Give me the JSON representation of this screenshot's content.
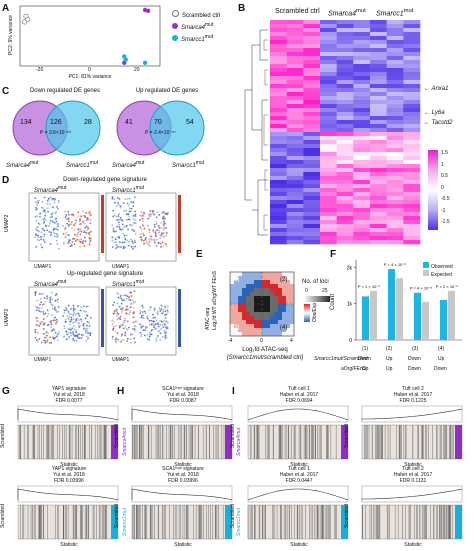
{
  "panels": {
    "A": {
      "label": "A",
      "xlabel": "PC1: 81% variance",
      "ylabel": "PC2: 9% variance",
      "xticks": [
        "-20",
        "0",
        "20"
      ],
      "yticks": [
        "-2",
        "0",
        "2",
        "4"
      ],
      "legend": [
        {
          "text": "Scrambled ctrl",
          "color": "#ffffff"
        },
        {
          "text": "Smarca4",
          "sup": "mut",
          "color": "#9b2fc6"
        },
        {
          "text": "Smarcc1",
          "sup": "mut",
          "color": "#14b6d8"
        }
      ]
    },
    "B": {
      "label": "B",
      "groups": [
        {
          "text": "Scrambled ctrl"
        },
        {
          "text": "Smarca4",
          "sup": "mut"
        },
        {
          "text": "Smarcc1",
          "sup": "mut"
        }
      ],
      "genes": [
        "Anxa1",
        "Ly6a",
        "Tacstd2"
      ],
      "scale_ticks": [
        "1.5",
        "1",
        "0.5",
        "0",
        "-0.5",
        "-1",
        "-1.5"
      ]
    },
    "C": {
      "label": "C",
      "down_title": "Down regulated DE genes",
      "up_title": "Up regulated DE genes",
      "down_counts": [
        "134",
        "126",
        "28"
      ],
      "up_counts": [
        "41",
        "70",
        "54"
      ],
      "down_p": "P = 3.6×10⁻⁶³",
      "up_p": "P = 2.4×10⁻⁵⁷",
      "left_set": {
        "text": "Smarca4",
        "sup": "mut"
      },
      "right_set": {
        "text": "Smarcc1",
        "sup": "mut"
      }
    },
    "D": {
      "label": "D",
      "down_title": "Down-regulated gene signature",
      "up_title": "Up-regulated gene signature",
      "umap1": "UMAP1",
      "umap2": "UMAP2",
      "left_set": {
        "text": "Smarca4",
        "sup": "mut"
      },
      "right_set": {
        "text": "Smarcc1",
        "sup": "mut"
      }
    },
    "E": {
      "label": "E",
      "ylabel_line1": "ATAC-seq",
      "ylabel_line2": "Log₂fd WT aOrg/WT FEnS",
      "xlabel_line1": "Log₂fd ATAC-seq",
      "xlabel_line2": "(Smarcc1mut/scrambled ctrl)",
      "quadrants": [
        "(1)",
        "(2)",
        "(3)",
        "(4)"
      ],
      "xticks": [
        "-4",
        "0",
        "4"
      ],
      "colorbar_title": "No. of loci",
      "colorbar_ticks": [
        "0",
        "25"
      ],
      "ratio_label": "Obs/Exp"
    },
    "F": {
      "label": "F",
      "ylabel": "Count",
      "yticks": [
        "0",
        "1k",
        "2k"
      ],
      "legend": [
        "Observed",
        "Expected"
      ],
      "colors": {
        "observed": "#1fb4e6",
        "expected": "#c8c8c8"
      },
      "row1_label": "Smarcc1mut/Scrambled",
      "row2_label": "aOrg/FEnS",
      "row1": [
        "Down",
        "Up",
        "Down",
        "Up"
      ],
      "row2": [
        "Up",
        "Up",
        "Down",
        "Down"
      ],
      "pvalues": [
        "P = 1 × 10⁻⁶",
        "P = 4 × 10⁻⁶",
        "P = 4 × 10⁻⁸",
        "P = 2 × 10⁻⁹"
      ]
    },
    "G": {
      "label": "G",
      "top_title": [
        "YAP1 signature",
        "Yui et al. 2018",
        "FDR 0.0077"
      ],
      "bottom_title": [
        "YAP1 signature",
        "Yui et al. 2018",
        "FDR 0.03996"
      ],
      "top_set": "Smarca4mut",
      "bottom_set": "Smarcc1mut",
      "statistic": "Statistic",
      "scrambled": "Scrambled",
      "enrichment": "Enrichment"
    },
    "H": {
      "label": "H",
      "top_title": [
        "SCA1ʰⁱᵍʰ signature",
        "Yui et al. 2018",
        "FDR 0.0087"
      ],
      "bottom_title": [
        "SCA1ʰⁱᵍʰ signature",
        "Yui et al. 2018",
        "FDR 0.03996"
      ],
      "top_set": "Smarca4mut",
      "bottom_set": "Smarcc1mut",
      "statistic": "Statistic",
      "scrambled": "Scrambled"
    },
    "I": {
      "label": "I",
      "titles": [
        [
          "Tuft cell 1",
          "Haber et al. 2017",
          "FDR 0.0694"
        ],
        [
          "Tuft cell 2",
          "Haber et al. 2017",
          "FDR 0.1225"
        ],
        [
          "Tuft cell 1",
          "Haber et al. 2017",
          "FDR 0.0447"
        ],
        [
          "Tuft cell 2",
          "Haber et al. 2017",
          "FDR 0.1131"
        ]
      ],
      "statistic": "Statistic",
      "scrambled": "Scrambled"
    }
  },
  "chart_data": [
    {
      "panel": "A",
      "type": "scatter",
      "xlabel": "PC1: 81% variance",
      "ylabel": "PC2: 9% variance",
      "xlim": [
        -25,
        22
      ],
      "ylim": [
        -3,
        4.5
      ],
      "series": [
        {
          "name": "Scrambled ctrl",
          "points": [
            [
              -23,
              3.2
            ],
            [
              -22.5,
              2.8
            ],
            [
              -23.5,
              2.5
            ]
          ]
        },
        {
          "name": "Smarca4mut",
          "points": [
            [
              17,
              4.0
            ],
            [
              18,
              3.9
            ],
            [
              10,
              -2.6
            ]
          ]
        },
        {
          "name": "Smarcc1mut",
          "points": [
            [
              10,
              -1.8
            ],
            [
              17,
              -2.6
            ],
            [
              10.5,
              -2.2
            ]
          ]
        }
      ]
    },
    {
      "panel": "F",
      "type": "bar",
      "ylabel": "Count",
      "ylim": [
        0,
        2200
      ],
      "categories": [
        "(1)",
        "(2)",
        "(3)",
        "(4)"
      ],
      "series": [
        {
          "name": "Observed",
          "values": [
            1200,
            1950,
            1300,
            1100
          ]
        },
        {
          "name": "Expected",
          "values": [
            1350,
            1700,
            1050,
            1350
          ]
        }
      ]
    }
  ]
}
